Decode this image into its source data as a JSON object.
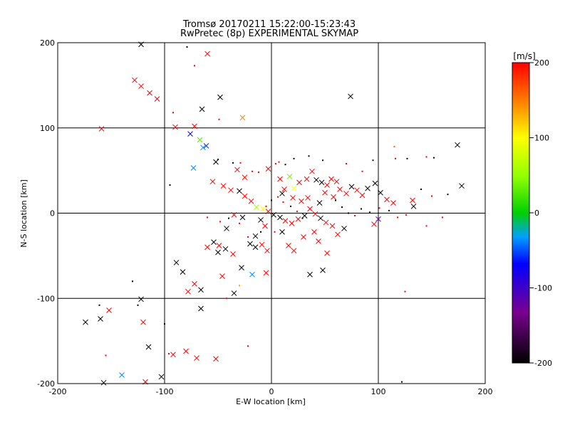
{
  "chart_data": {
    "type": "scatter",
    "title": "Tromsø 20170211 15:22:00-15:23:43",
    "subtitle": "RwPretec (8p) EXPERIMENTAL SKYMAP",
    "xlabel": "E-W location [km]",
    "ylabel": "N-S location [km]",
    "xlim": [
      -200,
      200
    ],
    "ylim": [
      -200,
      200
    ],
    "xticks": [
      "-200",
      "-100",
      "0",
      "100",
      "200"
    ],
    "yticks": [
      "-200",
      "-100",
      "0",
      "100",
      "200"
    ],
    "grid": true,
    "colorbar": {
      "label": "[m/s]",
      "min": -200,
      "max": 200,
      "ticks": [
        "200",
        "100",
        "0",
        "-100",
        "-200"
      ]
    },
    "markers": [
      "x",
      "dot"
    ],
    "points": [
      [
        -122,
        198,
        "x",
        -200
      ],
      [
        -79,
        195,
        "d",
        -200
      ],
      [
        -60,
        187,
        "x",
        200
      ],
      [
        -72,
        173,
        "d",
        200
      ],
      [
        -128,
        156,
        "x",
        200
      ],
      [
        -122,
        149,
        "x",
        200
      ],
      [
        -114,
        141,
        "x",
        200
      ],
      [
        -107,
        134,
        "x",
        200
      ],
      [
        -48,
        136,
        "x",
        -200
      ],
      [
        74,
        137,
        "x",
        -200
      ],
      [
        -65,
        122,
        "x",
        -200
      ],
      [
        -92,
        118,
        "d",
        200
      ],
      [
        -49,
        110,
        "d",
        200
      ],
      [
        -27,
        112,
        "x",
        150
      ],
      [
        -159,
        99,
        "x",
        200
      ],
      [
        -90,
        101,
        "x",
        200
      ],
      [
        -76,
        93,
        "x",
        -80
      ],
      [
        -72,
        102,
        "x",
        200
      ],
      [
        -67,
        86,
        "x",
        30
      ],
      [
        -64,
        77,
        "x",
        -40
      ],
      [
        -61,
        79,
        "x",
        -60
      ],
      [
        -73,
        53,
        "x",
        -40
      ],
      [
        -52,
        60,
        "x",
        -200
      ],
      [
        -50,
        63,
        "d",
        -200
      ],
      [
        -29,
        59,
        "d",
        200
      ],
      [
        -36,
        59,
        "d",
        -200
      ],
      [
        -32,
        51,
        "x",
        200
      ],
      [
        -25,
        42,
        "x",
        200
      ],
      [
        -18,
        49,
        "d",
        200
      ],
      [
        -12,
        48,
        "d",
        200
      ],
      [
        -3,
        52,
        "x",
        200
      ],
      [
        4,
        58,
        "d",
        200
      ],
      [
        7,
        60,
        "d",
        200
      ],
      [
        13,
        57,
        "d",
        -200
      ],
      [
        21,
        64,
        "d",
        -200
      ],
      [
        35,
        67,
        "d",
        -200
      ],
      [
        48,
        62,
        "d",
        -200
      ],
      [
        70,
        58,
        "d",
        200
      ],
      [
        85,
        49,
        "d",
        200
      ],
      [
        95,
        62,
        "d",
        -200
      ],
      [
        115,
        78,
        "d",
        160
      ],
      [
        116,
        64,
        "d",
        200
      ],
      [
        127,
        64,
        "d",
        -200
      ],
      [
        145,
        66,
        "d",
        200
      ],
      [
        152,
        65,
        "d",
        -200
      ],
      [
        174,
        80,
        "x",
        -200
      ],
      [
        178,
        32,
        "x",
        -200
      ],
      [
        10,
        23,
        "x",
        -200
      ],
      [
        17,
        43,
        "x",
        40
      ],
      [
        21,
        29,
        "x",
        100
      ],
      [
        26,
        36,
        "x",
        200
      ],
      [
        33,
        40,
        "x",
        200
      ],
      [
        38,
        49,
        "x",
        200
      ],
      [
        42,
        39,
        "x",
        -200
      ],
      [
        47,
        36,
        "x",
        -200
      ],
      [
        52,
        33,
        "x",
        200
      ],
      [
        56,
        40,
        "x",
        200
      ],
      [
        61,
        37,
        "x",
        200
      ],
      [
        64,
        28,
        "x",
        200
      ],
      [
        70,
        23,
        "x",
        200
      ],
      [
        75,
        31,
        "x",
        -200
      ],
      [
        80,
        27,
        "x",
        200
      ],
      [
        85,
        21,
        "x",
        200
      ],
      [
        90,
        29,
        "x",
        -200
      ],
      [
        97,
        35,
        "x",
        -200
      ],
      [
        102,
        24,
        "x",
        -200
      ],
      [
        108,
        16,
        "x",
        200
      ],
      [
        114,
        12,
        "x",
        200
      ],
      [
        132,
        15,
        "x",
        200
      ],
      [
        133,
        8,
        "x",
        -200
      ],
      [
        100,
        -7,
        "x",
        -120
      ],
      [
        96,
        -13,
        "x",
        200
      ],
      [
        -55,
        37,
        "x",
        200
      ],
      [
        -45,
        32,
        "x",
        200
      ],
      [
        -38,
        27,
        "x",
        200
      ],
      [
        -30,
        26,
        "x",
        -200
      ],
      [
        -25,
        20,
        "x",
        200
      ],
      [
        -19,
        14,
        "x",
        200
      ],
      [
        -14,
        7,
        "x",
        60
      ],
      [
        -8,
        5,
        "x",
        100
      ],
      [
        -3,
        2,
        "x",
        200
      ],
      [
        2,
        -2,
        "x",
        -200
      ],
      [
        8,
        -5,
        "x",
        -200
      ],
      [
        13,
        -9,
        "x",
        200
      ],
      [
        19,
        -12,
        "x",
        200
      ],
      [
        25,
        -7,
        "x",
        200
      ],
      [
        31,
        -3,
        "x",
        -200
      ],
      [
        36,
        5,
        "x",
        200
      ],
      [
        41,
        -1,
        "x",
        200
      ],
      [
        46,
        -6,
        "x",
        -200
      ],
      [
        51,
        -11,
        "x",
        200
      ],
      [
        57,
        -15,
        "x",
        200
      ],
      [
        -54,
        -34,
        "x",
        -200
      ],
      [
        -49,
        -38,
        "x",
        200
      ],
      [
        -43,
        -42,
        "x",
        -200
      ],
      [
        -36,
        -48,
        "x",
        200
      ],
      [
        -20,
        -36,
        "x",
        -200
      ],
      [
        -15,
        -40,
        "x",
        -200
      ],
      [
        -9,
        -37,
        "x",
        200
      ],
      [
        -4,
        -44,
        "x",
        200
      ],
      [
        16,
        -38,
        "x",
        200
      ],
      [
        21,
        -44,
        "x",
        200
      ],
      [
        36,
        -72,
        "x",
        -200
      ],
      [
        48,
        -67,
        "x",
        -200
      ],
      [
        52,
        -47,
        "x",
        200
      ],
      [
        -89,
        -58,
        "x",
        -200
      ],
      [
        -83,
        -69,
        "x",
        -200
      ],
      [
        -78,
        -92,
        "x",
        200
      ],
      [
        -72,
        -83,
        "x",
        200
      ],
      [
        -66,
        -90,
        "x",
        -200
      ],
      [
        -46,
        -74,
        "x",
        200
      ],
      [
        -35,
        -94,
        "x",
        -200
      ],
      [
        -28,
        -64,
        "x",
        -200
      ],
      [
        -18,
        -72,
        "x",
        -40
      ],
      [
        -5,
        -70,
        "x",
        200
      ],
      [
        -122,
        -101,
        "x",
        -200
      ],
      [
        -66,
        -112,
        "x",
        -200
      ],
      [
        -125,
        -108,
        "d",
        -200
      ],
      [
        -161,
        -108,
        "d",
        -200
      ],
      [
        -174,
        -128,
        "x",
        -200
      ],
      [
        -160,
        -124,
        "x",
        -200
      ],
      [
        -152,
        -114,
        "x",
        200
      ],
      [
        -120,
        -128,
        "x",
        200
      ],
      [
        -115,
        -157,
        "x",
        -200
      ],
      [
        -96,
        -165,
        "d",
        200
      ],
      [
        -92,
        -166,
        "x",
        200
      ],
      [
        -80,
        -162,
        "x",
        200
      ],
      [
        -70,
        -170,
        "x",
        200
      ],
      [
        -52,
        -171,
        "x",
        200
      ],
      [
        -155,
        -167,
        "d",
        200
      ],
      [
        -140,
        -190,
        "x",
        -40
      ],
      [
        -103,
        -192,
        "x",
        -200
      ],
      [
        -118,
        -198,
        "x",
        200
      ],
      [
        -157,
        -199,
        "x",
        -200
      ],
      [
        122,
        -198,
        "d",
        -200
      ],
      [
        125,
        -92,
        "d",
        200
      ],
      [
        60,
        15,
        "d",
        -200
      ],
      [
        66,
        7,
        "d",
        -200
      ],
      [
        72,
        0,
        "d",
        -200
      ],
      [
        78,
        -3,
        "d",
        200
      ],
      [
        84,
        5,
        "d",
        -200
      ],
      [
        92,
        1,
        "d",
        -200
      ],
      [
        101,
        6,
        "d",
        200
      ],
      [
        110,
        3,
        "d",
        -200
      ],
      [
        118,
        -5,
        "d",
        200
      ],
      [
        126,
        -2,
        "d",
        200
      ],
      [
        -5,
        8,
        "d",
        200
      ],
      [
        0,
        15,
        "d",
        -200
      ],
      [
        6,
        19,
        "d",
        200
      ],
      [
        11,
        13,
        "d",
        200
      ],
      [
        18,
        8,
        "d",
        -200
      ],
      [
        24,
        2,
        "d",
        200
      ],
      [
        29,
        -6,
        "d",
        -200
      ],
      [
        3,
        -22,
        "d",
        200
      ],
      [
        -10,
        -22,
        "d",
        -200
      ],
      [
        -22,
        -28,
        "d",
        200
      ],
      [
        -30,
        -12,
        "d",
        200
      ],
      [
        -40,
        -6,
        "d",
        -200
      ],
      [
        -48,
        -10,
        "d",
        200
      ],
      [
        -60,
        -5,
        "d",
        200
      ],
      [
        -95,
        33,
        "d",
        -200
      ],
      [
        -130,
        -80,
        "d",
        -200
      ],
      [
        -42,
        -100,
        "d",
        200
      ],
      [
        -22,
        -156,
        "d",
        200
      ],
      [
        -100,
        -130,
        "d",
        -200
      ],
      [
        -30,
        -85,
        "d",
        140
      ],
      [
        145,
        -15,
        "d",
        200
      ],
      [
        160,
        -5,
        "d",
        200
      ],
      [
        165,
        22,
        "d",
        -200
      ],
      [
        140,
        28,
        "d",
        -200
      ],
      [
        150,
        20,
        "d",
        200
      ],
      [
        -27,
        -5,
        "x",
        -200
      ],
      [
        -35,
        -2,
        "x",
        200
      ],
      [
        -42,
        -18,
        "x",
        -200
      ],
      [
        -50,
        -46,
        "x",
        -200
      ],
      [
        -60,
        -40,
        "x",
        200
      ],
      [
        -10,
        -8,
        "x",
        -200
      ],
      [
        -15,
        -27,
        "x",
        -200
      ],
      [
        -6,
        -15,
        "x",
        200
      ],
      [
        10,
        -22,
        "x",
        -200
      ],
      [
        30,
        -28,
        "x",
        200
      ],
      [
        40,
        -22,
        "x",
        200
      ],
      [
        44,
        -33,
        "x",
        200
      ],
      [
        62,
        -25,
        "x",
        200
      ],
      [
        68,
        -18,
        "x",
        -200
      ],
      [
        28,
        14,
        "x",
        200
      ],
      [
        34,
        18,
        "x",
        200
      ],
      [
        45,
        12,
        "x",
        -200
      ],
      [
        50,
        24,
        "x",
        200
      ],
      [
        58,
        19,
        "x",
        200
      ],
      [
        8,
        40,
        "x",
        200
      ],
      [
        12,
        28,
        "x",
        200
      ],
      [
        20,
        18,
        "x",
        200
      ]
    ]
  }
}
